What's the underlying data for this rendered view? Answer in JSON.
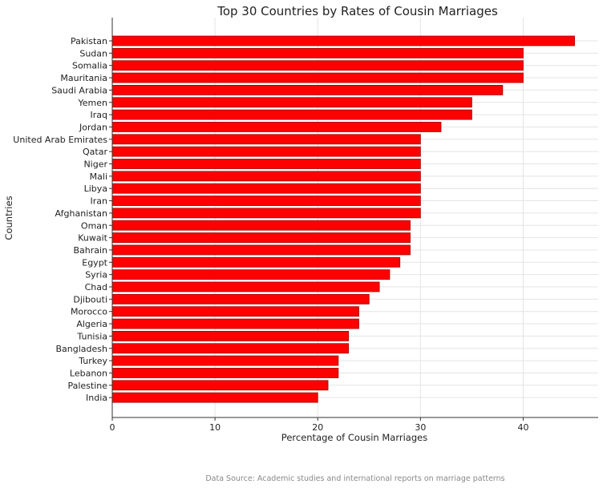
{
  "chart_data": {
    "type": "bar",
    "orientation": "horizontal",
    "title": "Top 30 Countries by Rates of Cousin Marriages",
    "xlabel": "Percentage of Cousin Marriages",
    "ylabel": "Countries",
    "categories": [
      "Pakistan",
      "Sudan",
      "Somalia",
      "Mauritania",
      "Saudi Arabia",
      "Yemen",
      "Iraq",
      "Jordan",
      "United Arab Emirates",
      "Qatar",
      "Niger",
      "Mali",
      "Libya",
      "Iran",
      "Afghanistan",
      "Oman",
      "Kuwait",
      "Bahrain",
      "Egypt",
      "Syria",
      "Chad",
      "Djibouti",
      "Morocco",
      "Algeria",
      "Tunisia",
      "Bangladesh",
      "Turkey",
      "Lebanon",
      "Palestine",
      "India"
    ],
    "values": [
      45,
      40,
      40,
      40,
      38,
      35,
      35,
      32,
      30,
      30,
      30,
      30,
      30,
      30,
      30,
      29,
      29,
      29,
      28,
      27,
      26,
      25,
      24,
      24,
      23,
      23,
      22,
      22,
      21,
      20
    ],
    "xlim": [
      0,
      47.3
    ],
    "xticks": [
      0,
      10,
      20,
      30,
      40
    ],
    "grid": true,
    "bar_color": "#ff0000",
    "source": "Data Source: Academic studies and international reports on marriage patterns"
  }
}
